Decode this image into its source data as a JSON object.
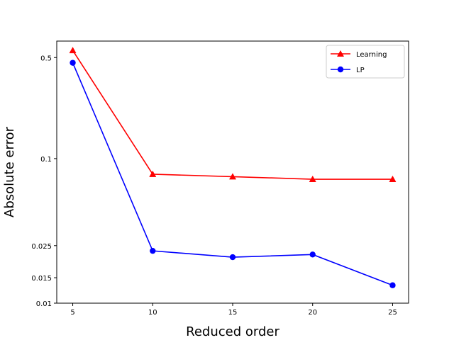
{
  "chart_data": {
    "type": "line",
    "title": "",
    "xlabel": "Reduced order",
    "ylabel": "Absolute error",
    "yscale": "log",
    "xlim": [
      4,
      26
    ],
    "ylim": [
      0.01,
      0.65
    ],
    "xticks": [
      5,
      10,
      15,
      20,
      25
    ],
    "xtick_labels": [
      "5",
      "10",
      "15",
      "20",
      "25"
    ],
    "yticks": [
      0.01,
      0.015,
      0.025,
      0.1,
      0.5
    ],
    "ytick_labels": [
      "0.01",
      "0.015",
      "0.025",
      "0.1",
      "0.5"
    ],
    "grid": false,
    "legend_position": "top-right",
    "x": [
      5,
      10,
      15,
      20,
      25
    ],
    "series": [
      {
        "name": "Learning",
        "color": "#ff0000",
        "marker": "triangle",
        "values": [
          0.56,
          0.078,
          0.075,
          0.072,
          0.072
        ]
      },
      {
        "name": "LP",
        "color": "#0000ff",
        "marker": "circle",
        "values": [
          0.46,
          0.023,
          0.0208,
          0.0217,
          0.0133
        ]
      }
    ]
  }
}
